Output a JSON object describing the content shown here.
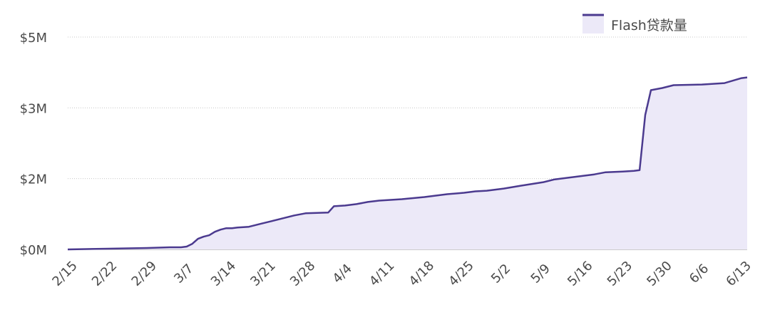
{
  "colors": {
    "line": "#4b3a8f",
    "fill": "#ece9f8",
    "grid": "#c8c8c8",
    "text": "#4a4a4a"
  },
  "chart_data": {
    "type": "area",
    "title": "",
    "xlabel": "",
    "ylabel": "",
    "legend": {
      "position": "top-right",
      "label": "Flash贷款量"
    },
    "grid": true,
    "x_tick_labels": [
      "2/15",
      "2/22",
      "2/29",
      "3/7",
      "3/14",
      "3/21",
      "3/28",
      "4/4",
      "4/11",
      "4/18",
      "4/25",
      "5/2",
      "5/9",
      "5/16",
      "5/23",
      "5/30",
      "6/6",
      "6/13"
    ],
    "y_ticks": [
      {
        "value": 0,
        "label": "$0M"
      },
      {
        "value": 1,
        "label": "$2M"
      },
      {
        "value": 2,
        "label": "$3M"
      },
      {
        "value": 3,
        "label": "$5M"
      }
    ],
    "ylim": [
      0,
      3
    ],
    "series": [
      {
        "name": "Flash贷款量",
        "x": [
          "2/15",
          "2/22",
          "2/29",
          "3/4",
          "3/6",
          "3/7",
          "3/8",
          "3/9",
          "3/10",
          "3/11",
          "3/12",
          "3/13",
          "3/14",
          "3/15",
          "3/16",
          "3/18",
          "3/20",
          "3/22",
          "3/24",
          "3/26",
          "3/28",
          "4/1",
          "4/2",
          "4/4",
          "4/6",
          "4/8",
          "4/10",
          "4/12",
          "4/14",
          "4/18",
          "4/20",
          "4/22",
          "4/25",
          "4/27",
          "4/29",
          "5/2",
          "5/5",
          "5/9",
          "5/11",
          "5/13",
          "5/16",
          "5/18",
          "5/20",
          "5/23",
          "5/25",
          "5/26",
          "5/27",
          "5/28",
          "5/30",
          "6/1",
          "6/6",
          "6/10",
          "6/13",
          "6/14"
        ],
        "values": [
          0,
          0.01,
          0.02,
          0.03,
          0.03,
          0.04,
          0.08,
          0.15,
          0.18,
          0.2,
          0.25,
          0.28,
          0.3,
          0.3,
          0.31,
          0.32,
          0.36,
          0.4,
          0.44,
          0.48,
          0.51,
          0.52,
          0.61,
          0.62,
          0.64,
          0.67,
          0.69,
          0.7,
          0.71,
          0.74,
          0.76,
          0.78,
          0.8,
          0.82,
          0.83,
          0.86,
          0.9,
          0.95,
          0.99,
          1.01,
          1.04,
          1.06,
          1.09,
          1.1,
          1.11,
          1.12,
          1.9,
          2.25,
          2.28,
          2.32,
          2.33,
          2.35,
          2.42,
          2.43
        ]
      }
    ]
  }
}
